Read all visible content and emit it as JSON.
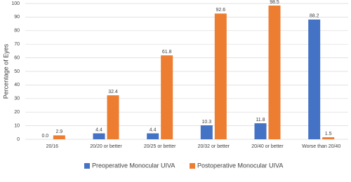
{
  "chart_data": {
    "type": "bar",
    "y_label": "Percentage of Eyes",
    "categories": [
      "20/16",
      "20/20 or better",
      "20/25 or better",
      "20/32 or better",
      "20/40 or better",
      "Worse than 20/40"
    ],
    "series": [
      {
        "name": "Preoperative Monocular UIVA",
        "color": "#4472c4",
        "values": [
          0,
          4.4,
          4.4,
          10.3,
          11.8,
          88.2
        ],
        "value_labels": [
          "0.0",
          "4.4",
          "4.4",
          "10.3",
          "11.8",
          "88.2"
        ]
      },
      {
        "name": "Postoperative Monocular UIVA",
        "color": "#ed7d31",
        "values": [
          2.9,
          32.4,
          61.8,
          92.6,
          98.5,
          1.5
        ]
      }
    ],
    "ylim": [
      0,
      100
    ],
    "yticks": [
      0,
      10,
      20,
      30,
      40,
      50,
      60,
      70,
      80,
      90,
      100
    ],
    "grid": true,
    "legend": "bottom"
  }
}
